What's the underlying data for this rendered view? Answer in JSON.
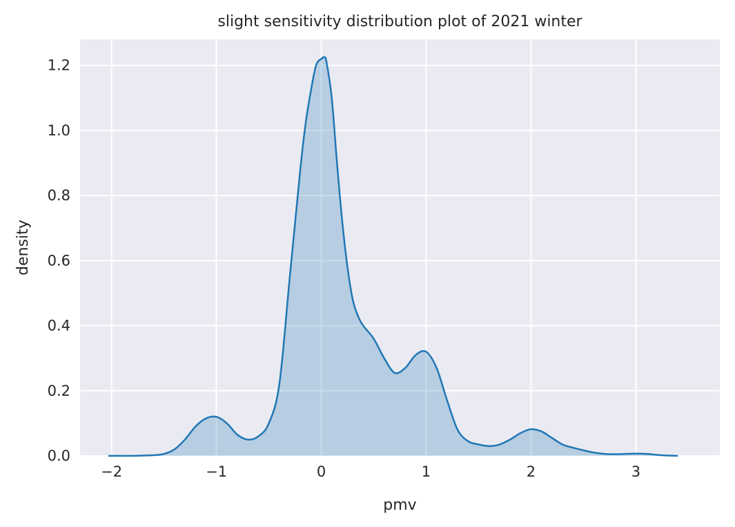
{
  "chart_data": {
    "type": "area",
    "title": "slight sensitivity distribution plot of 2021 winter",
    "xlabel": "pmv",
    "ylabel": "density",
    "xlim": [
      -2.3,
      3.8
    ],
    "ylim": [
      0,
      1.28
    ],
    "xticks": [
      -2,
      -1,
      0,
      1,
      2,
      3
    ],
    "xtick_labels": [
      "−2",
      "−1",
      "0",
      "1",
      "2",
      "3"
    ],
    "yticks": [
      0.0,
      0.2,
      0.4,
      0.6,
      0.8,
      1.0,
      1.2
    ],
    "ytick_labels": [
      "0.0",
      "0.2",
      "0.4",
      "0.6",
      "0.8",
      "1.0",
      "1.2"
    ],
    "grid": true,
    "background_color": "#eaeaf2",
    "line_color": "#1f77b4",
    "fill_color": "#1f77b4",
    "fill_opacity": 0.25,
    "series": [
      {
        "x": [
          -2.03,
          -1.8,
          -1.6,
          -1.5,
          -1.4,
          -1.3,
          -1.2,
          -1.1,
          -1.0,
          -0.9,
          -0.8,
          -0.7,
          -0.6,
          -0.5,
          -0.4,
          -0.3,
          -0.2,
          -0.15,
          -0.1,
          -0.05,
          0.0,
          0.03,
          0.05,
          0.1,
          0.15,
          0.2,
          0.25,
          0.3,
          0.35,
          0.4,
          0.5,
          0.6,
          0.7,
          0.8,
          0.9,
          1.0,
          1.1,
          1.2,
          1.3,
          1.4,
          1.5,
          1.6,
          1.7,
          1.8,
          1.9,
          2.0,
          2.1,
          2.2,
          2.3,
          2.4,
          2.5,
          2.6,
          2.7,
          2.8,
          2.9,
          3.0,
          3.1,
          3.2,
          3.3,
          3.4
        ],
        "y": [
          0.0,
          0.0,
          0.002,
          0.006,
          0.02,
          0.05,
          0.09,
          0.115,
          0.12,
          0.1,
          0.065,
          0.05,
          0.06,
          0.1,
          0.22,
          0.55,
          0.88,
          1.02,
          1.12,
          1.2,
          1.22,
          1.225,
          1.21,
          1.1,
          0.9,
          0.72,
          0.58,
          0.48,
          0.43,
          0.4,
          0.36,
          0.3,
          0.255,
          0.27,
          0.31,
          0.32,
          0.27,
          0.17,
          0.08,
          0.045,
          0.035,
          0.03,
          0.035,
          0.05,
          0.07,
          0.082,
          0.075,
          0.055,
          0.035,
          0.025,
          0.017,
          0.01,
          0.006,
          0.005,
          0.006,
          0.007,
          0.006,
          0.003,
          0.001,
          0.0
        ]
      }
    ]
  }
}
